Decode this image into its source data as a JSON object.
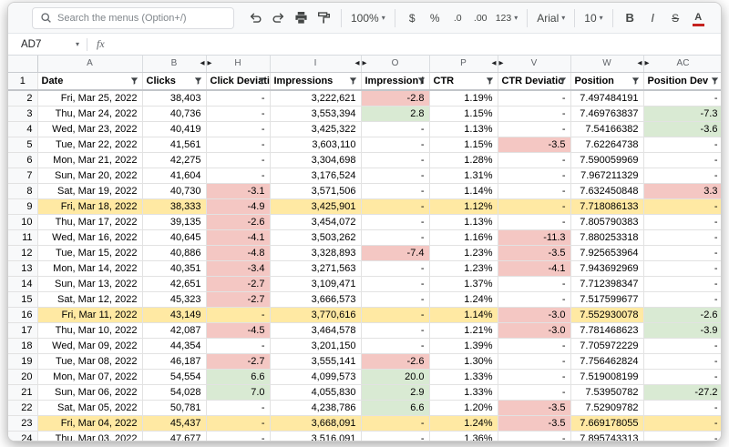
{
  "toolbar": {
    "search_placeholder": "Search the menus (Option+/)",
    "zoom_value": "100%",
    "currency_label": "$",
    "percent_label": "%",
    "decrease_decimal_label": ".0",
    "increase_decimal_label": ".00",
    "number_format_label": "123",
    "font_name": "Arial",
    "font_size": "10",
    "bold_label": "B",
    "italic_label": "I",
    "strikethrough_label": "S",
    "text_color_label": "A"
  },
  "formula_bar": {
    "name_box_value": "AD7",
    "fx_label": "fx"
  },
  "colors": {
    "negative_bg": "#f4c7c3",
    "positive_bg": "#d9ead3",
    "highlight_row_bg": "#ffe9a3",
    "text_color_bar": "#c5221f"
  },
  "grid": {
    "columns": [
      {
        "letter": "A",
        "header": "Date",
        "hidden_before": false
      },
      {
        "letter": "B",
        "header": "Clicks",
        "hidden_before": false
      },
      {
        "letter": "H",
        "header": "Click Deviati",
        "hidden_before": true
      },
      {
        "letter": "I",
        "header": "Impressions",
        "hidden_before": false
      },
      {
        "letter": "O",
        "header": "Impression I",
        "hidden_before": true
      },
      {
        "letter": "P",
        "header": "CTR",
        "hidden_before": false
      },
      {
        "letter": "V",
        "header": "CTR Deviatio",
        "hidden_before": true
      },
      {
        "letter": "W",
        "header": "Position",
        "hidden_before": false
      },
      {
        "letter": "AC",
        "header": "Position Dev",
        "hidden_before": true
      }
    ],
    "rows": [
      {
        "n": 2,
        "values": [
          "Fri, Mar 25, 2022",
          "38,403",
          "-",
          "3,222,621",
          "-2.8",
          "1.19%",
          "-",
          "7.497484191",
          "-"
        ],
        "bg": {
          "4": "neg"
        }
      },
      {
        "n": 3,
        "values": [
          "Thu, Mar 24, 2022",
          "40,736",
          "-",
          "3,553,394",
          "2.8",
          "1.15%",
          "-",
          "7.469763837",
          "-7.3"
        ],
        "bg": {
          "4": "pos",
          "8": "pos"
        }
      },
      {
        "n": 4,
        "values": [
          "Wed, Mar 23, 2022",
          "40,419",
          "-",
          "3,425,322",
          "-",
          "1.13%",
          "-",
          "7.54166382",
          "-3.6"
        ],
        "bg": {
          "8": "pos"
        }
      },
      {
        "n": 5,
        "values": [
          "Tue, Mar 22, 2022",
          "41,561",
          "-",
          "3,603,110",
          "-",
          "1.15%",
          "-3.5",
          "7.62264738",
          "-"
        ],
        "bg": {
          "6": "neg"
        }
      },
      {
        "n": 6,
        "values": [
          "Mon, Mar 21, 2022",
          "42,275",
          "-",
          "3,304,698",
          "-",
          "1.28%",
          "-",
          "7.590059969",
          "-"
        ],
        "bg": {}
      },
      {
        "n": 7,
        "values": [
          "Sun, Mar 20, 2022",
          "41,604",
          "-",
          "3,176,524",
          "-",
          "1.31%",
          "-",
          "7.967211329",
          "-"
        ],
        "bg": {}
      },
      {
        "n": 8,
        "values": [
          "Sat, Mar 19, 2022",
          "40,730",
          "-3.1",
          "3,571,506",
          "-",
          "1.14%",
          "-",
          "7.632450848",
          "3.3"
        ],
        "bg": {
          "2": "neg",
          "8": "neg"
        }
      },
      {
        "n": 9,
        "highlight": true,
        "values": [
          "Fri, Mar 18, 2022",
          "38,333",
          "-4.9",
          "3,425,901",
          "-",
          "1.12%",
          "-",
          "7.718086133",
          "-"
        ],
        "bg": {
          "2": "neg"
        }
      },
      {
        "n": 10,
        "values": [
          "Thu, Mar 17, 2022",
          "39,135",
          "-2.6",
          "3,454,072",
          "-",
          "1.13%",
          "-",
          "7.805790383",
          "-"
        ],
        "bg": {
          "2": "neg"
        }
      },
      {
        "n": 11,
        "values": [
          "Wed, Mar 16, 2022",
          "40,645",
          "-4.1",
          "3,503,262",
          "-",
          "1.16%",
          "-11.3",
          "7.880253318",
          "-"
        ],
        "bg": {
          "2": "neg",
          "6": "neg"
        }
      },
      {
        "n": 12,
        "values": [
          "Tue, Mar 15, 2022",
          "40,886",
          "-4.8",
          "3,328,893",
          "-7.4",
          "1.23%",
          "-3.5",
          "7.925653964",
          "-"
        ],
        "bg": {
          "2": "neg",
          "4": "neg",
          "6": "neg"
        }
      },
      {
        "n": 13,
        "values": [
          "Mon, Mar 14, 2022",
          "40,351",
          "-3.4",
          "3,271,563",
          "-",
          "1.23%",
          "-4.1",
          "7.943692969",
          "-"
        ],
        "bg": {
          "2": "neg",
          "6": "neg"
        }
      },
      {
        "n": 14,
        "values": [
          "Sun, Mar 13, 2022",
          "42,651",
          "-2.7",
          "3,109,471",
          "-",
          "1.37%",
          "-",
          "7.712398347",
          "-"
        ],
        "bg": {
          "2": "neg"
        }
      },
      {
        "n": 15,
        "values": [
          "Sat, Mar 12, 2022",
          "45,323",
          "-2.7",
          "3,666,573",
          "-",
          "1.24%",
          "-",
          "7.517599677",
          "-"
        ],
        "bg": {
          "2": "neg"
        }
      },
      {
        "n": 16,
        "highlight": true,
        "values": [
          "Fri, Mar 11, 2022",
          "43,149",
          "-",
          "3,770,616",
          "-",
          "1.14%",
          "-3.0",
          "7.552930078",
          "-2.6"
        ],
        "bg": {
          "6": "neg",
          "8": "pos"
        }
      },
      {
        "n": 17,
        "values": [
          "Thu, Mar 10, 2022",
          "42,087",
          "-4.5",
          "3,464,578",
          "-",
          "1.21%",
          "-3.0",
          "7.781468623",
          "-3.9"
        ],
        "bg": {
          "2": "neg",
          "6": "neg",
          "8": "pos"
        }
      },
      {
        "n": 18,
        "values": [
          "Wed, Mar 09, 2022",
          "44,354",
          "-",
          "3,201,150",
          "-",
          "1.39%",
          "-",
          "7.705972229",
          "-"
        ],
        "bg": {}
      },
      {
        "n": 19,
        "values": [
          "Tue, Mar 08, 2022",
          "46,187",
          "-2.7",
          "3,555,141",
          "-2.6",
          "1.30%",
          "-",
          "7.756462824",
          "-"
        ],
        "bg": {
          "2": "neg",
          "4": "neg"
        }
      },
      {
        "n": 20,
        "values": [
          "Mon, Mar 07, 2022",
          "54,554",
          "6.6",
          "4,099,573",
          "20.0",
          "1.33%",
          "-",
          "7.519008199",
          "-"
        ],
        "bg": {
          "2": "pos",
          "4": "pos"
        }
      },
      {
        "n": 21,
        "values": [
          "Sun, Mar 06, 2022",
          "54,028",
          "7.0",
          "4,055,830",
          "2.9",
          "1.33%",
          "-",
          "7.53950782",
          "-27.2"
        ],
        "bg": {
          "2": "pos",
          "4": "pos",
          "8": "pos"
        }
      },
      {
        "n": 22,
        "values": [
          "Sat, Mar 05, 2022",
          "50,781",
          "-",
          "4,238,786",
          "6.6",
          "1.20%",
          "-3.5",
          "7.52909782",
          "-"
        ],
        "bg": {
          "4": "pos",
          "6": "neg"
        }
      },
      {
        "n": 23,
        "highlight": true,
        "values": [
          "Fri, Mar 04, 2022",
          "45,437",
          "-",
          "3,668,091",
          "-",
          "1.24%",
          "-3.5",
          "7.669178055",
          "-"
        ],
        "bg": {
          "6": "neg"
        }
      },
      {
        "n": 24,
        "values": [
          "Thu, Mar 03, 2022",
          "47,677",
          "-",
          "3,516,091",
          "-",
          "1.36%",
          "-",
          "7.895743313",
          "-"
        ],
        "bg": {}
      }
    ]
  }
}
